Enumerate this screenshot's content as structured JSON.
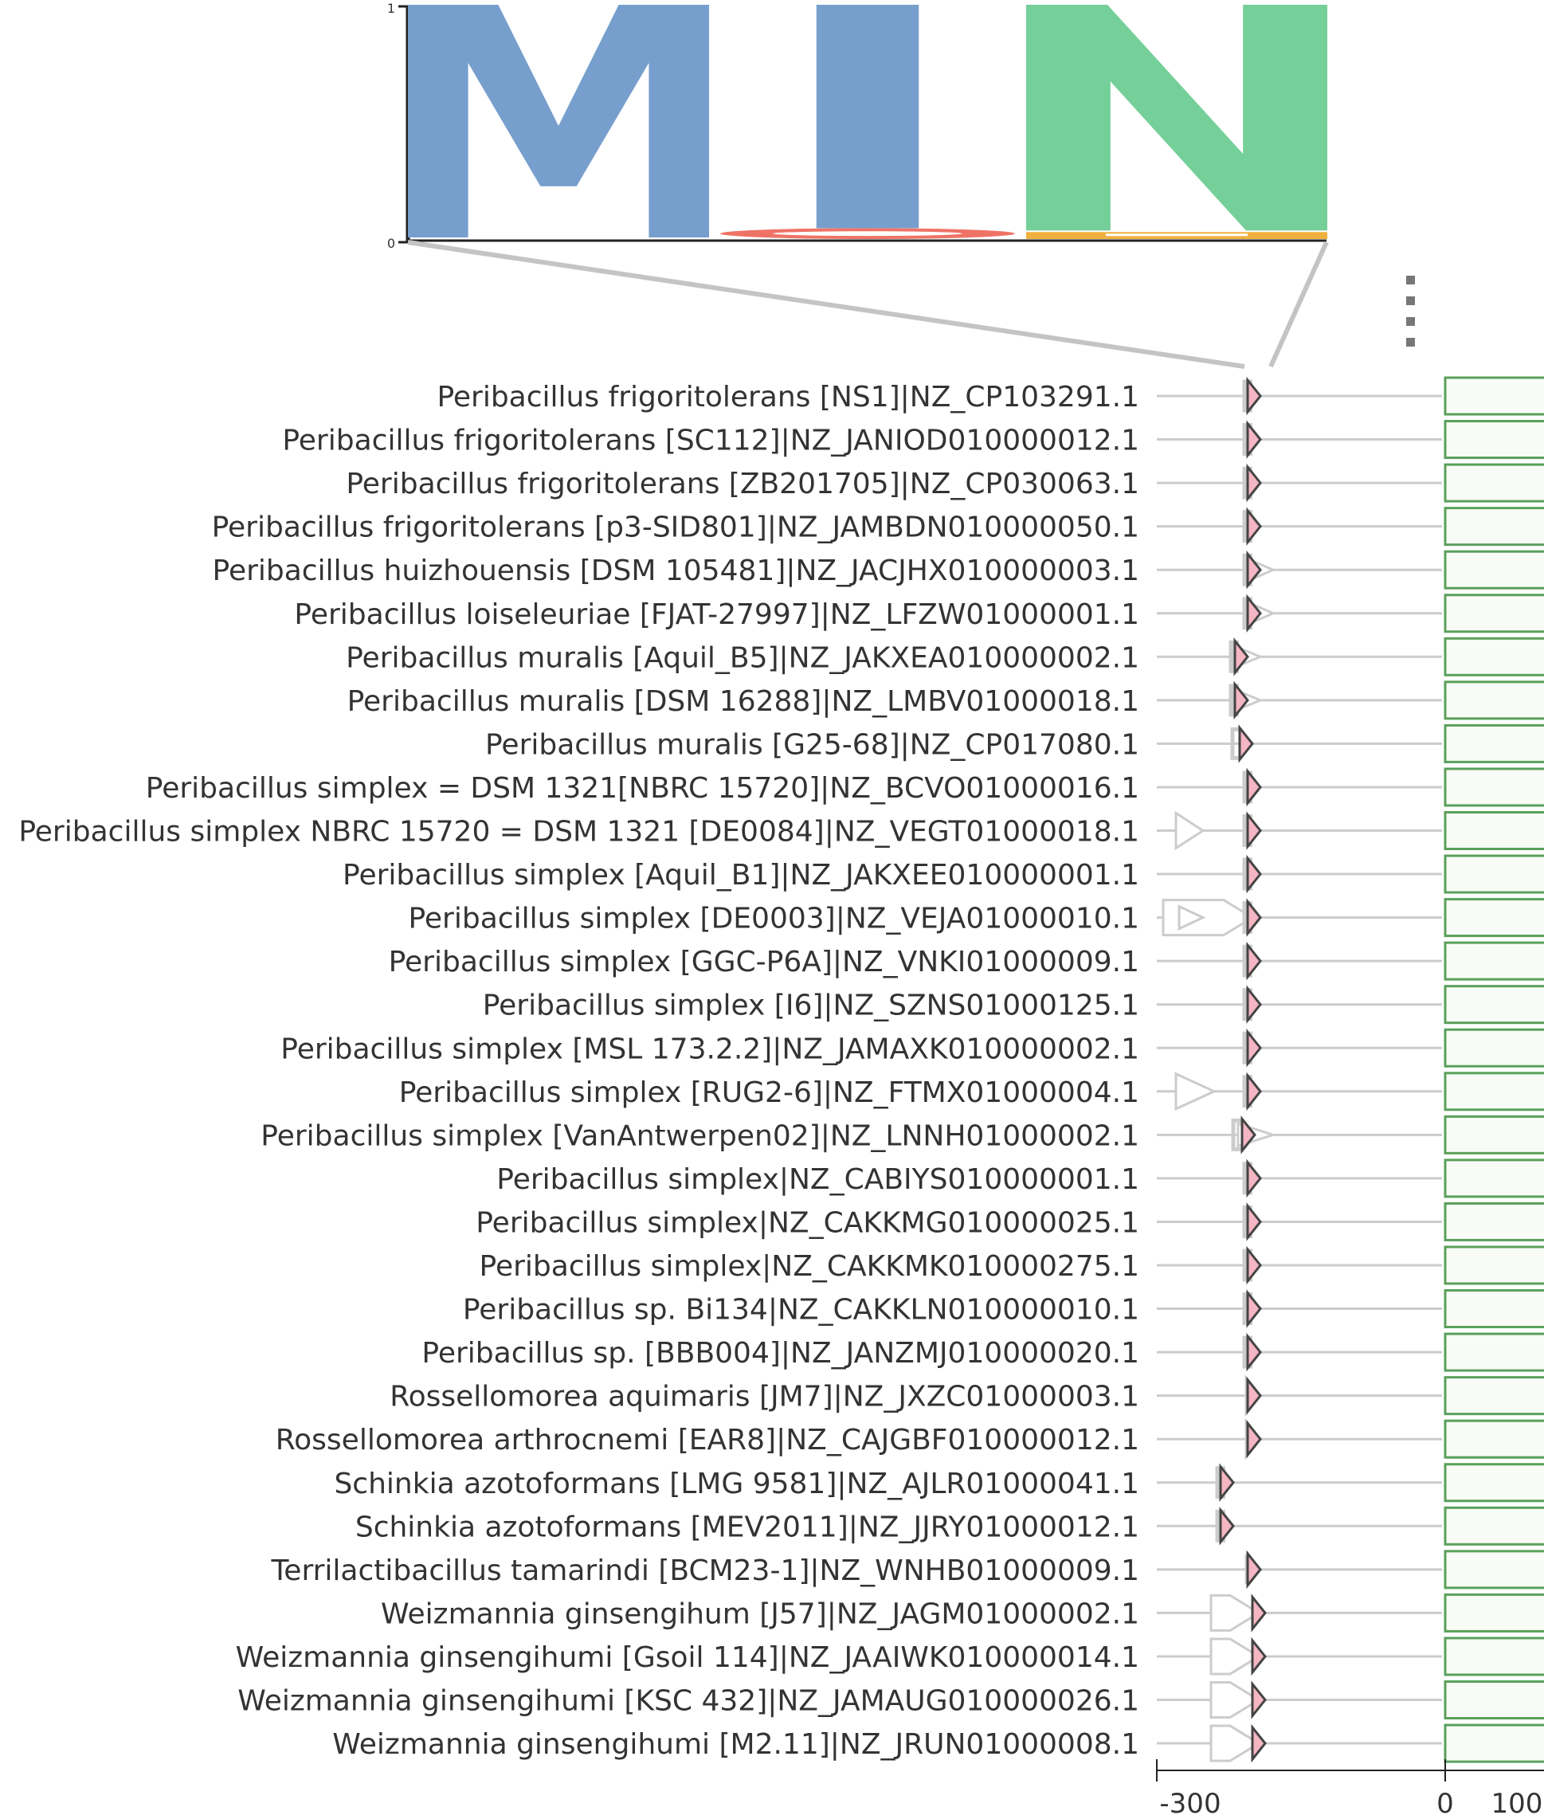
{
  "sequence_logo": {
    "y_axis": {
      "ticks": [
        "1",
        "0"
      ]
    },
    "positions": [
      {
        "letter": "M",
        "color": "#779fcd",
        "height": 1.0,
        "minor": []
      },
      {
        "letter": "I",
        "color": "#779fcd",
        "height": 1.0,
        "minor": [
          {
            "letter": "O",
            "color": "#ee7366",
            "height": 0.04
          }
        ]
      },
      {
        "letter": "N",
        "color": "#74cf98",
        "height": 1.0,
        "minor": [
          {
            "letter": "—",
            "color": "#f0b040",
            "height": 0.03
          }
        ]
      }
    ]
  },
  "genome_rows": [
    {
      "label": "Peribacillus frigoritolerans [NS1]|NZ_CP103291.1",
      "variant": "A"
    },
    {
      "label": "Peribacillus frigoritolerans [SC112]|NZ_JANIOD010000012.1",
      "variant": "A"
    },
    {
      "label": "Peribacillus frigoritolerans [ZB201705]|NZ_CP030063.1",
      "variant": "A"
    },
    {
      "label": "Peribacillus frigoritolerans [p3-SID801]|NZ_JAMBDN010000050.1",
      "variant": "A"
    },
    {
      "label": "Peribacillus huizhouensis [DSM 105481]|NZ_JACJHX010000003.1",
      "variant": "B"
    },
    {
      "label": "Peribacillus loiseleuriae [FJAT-27997]|NZ_LFZW01000001.1",
      "variant": "B"
    },
    {
      "label": "Peribacillus muralis [Aquil_B5]|NZ_JAKXEA010000002.1",
      "variant": "C"
    },
    {
      "label": "Peribacillus muralis [DSM 16288]|NZ_LMBV01000018.1",
      "variant": "C"
    },
    {
      "label": "Peribacillus muralis [G25-68]|NZ_CP017080.1",
      "variant": "C2"
    },
    {
      "label": "Peribacillus simplex  = DSM 1321[NBRC 15720]|NZ_BCVO01000016.1",
      "variant": "A"
    },
    {
      "label": "Peribacillus simplex NBRC 15720 = DSM 1321 [DE0084]|NZ_VEGT01000018.1",
      "variant": "D"
    },
    {
      "label": "Peribacillus simplex [Aquil_B1]|NZ_JAKXEE010000001.1",
      "variant": "A"
    },
    {
      "label": "Peribacillus simplex [DE0003]|NZ_VEJA01000010.1",
      "variant": "E"
    },
    {
      "label": "Peribacillus simplex [GGC-P6A]|NZ_VNKI01000009.1",
      "variant": "A"
    },
    {
      "label": "Peribacillus simplex [I6]|NZ_SZNS01000125.1",
      "variant": "A"
    },
    {
      "label": "Peribacillus simplex [MSL 173.2.2]|NZ_JAMAXK010000002.1",
      "variant": "A"
    },
    {
      "label": "Peribacillus simplex [RUG2-6]|NZ_FTMX01000004.1",
      "variant": "F"
    },
    {
      "label": "Peribacillus simplex [VanAntwerpen02]|NZ_LNNH01000002.1",
      "variant": "G"
    },
    {
      "label": "Peribacillus simplex|NZ_CABIYS010000001.1",
      "variant": "A"
    },
    {
      "label": "Peribacillus simplex|NZ_CAKKMG010000025.1",
      "variant": "A"
    },
    {
      "label": "Peribacillus simplex|NZ_CAKKMK010000275.1",
      "variant": "A"
    },
    {
      "label": "Peribacillus sp. Bi134|NZ_CAKKLN010000010.1",
      "variant": "A"
    },
    {
      "label": "Peribacillus sp. [BBB004]|NZ_JANZMJ010000020.1",
      "variant": "A"
    },
    {
      "label": "Rossellomorea aquimaris [JM7]|NZ_JXZC01000003.1",
      "variant": "H"
    },
    {
      "label": "Rossellomorea arthrocnemi [EAR8]|NZ_CAJGBF010000012.1",
      "variant": "H"
    },
    {
      "label": "Schinkia azotoformans [LMG 9581]|NZ_AJLR01000041.1",
      "variant": "I"
    },
    {
      "label": "Schinkia azotoformans [MEV2011]|NZ_JJRY01000012.1",
      "variant": "I"
    },
    {
      "label": "Terrilactibacillus tamarindi [BCM23-1]|NZ_WNHB01000009.1",
      "variant": "J"
    },
    {
      "label": "Weizmannia ginsengihum [J57]|NZ_JAGM01000002.1",
      "variant": "K"
    },
    {
      "label": "Weizmannia ginsengihumi [Gsoil 114]|NZ_JAAIWK010000014.1",
      "variant": "K"
    },
    {
      "label": "Weizmannia ginsengihumi [KSC 432]|NZ_JAMAUG010000026.1",
      "variant": "K"
    },
    {
      "label": "Weizmannia ginsengihumi [M2.11]|NZ_JRUN01000008.1",
      "variant": "K"
    }
  ],
  "x_axis_left": {
    "ticks": [
      "-300"
    ]
  },
  "x_axis_right": {
    "ticks": [
      "0",
      "100"
    ]
  },
  "colors": {
    "gene_focus_fill": "#f4b6c2",
    "gene_focus_stroke": "#444444",
    "gene_other_stroke": "#cccccc",
    "track_line": "#cccccc",
    "right_panel_stroke": "#5aa05a",
    "right_panel_fill": "#f8fbf6",
    "zoom_lines": "#c4c4c4"
  }
}
